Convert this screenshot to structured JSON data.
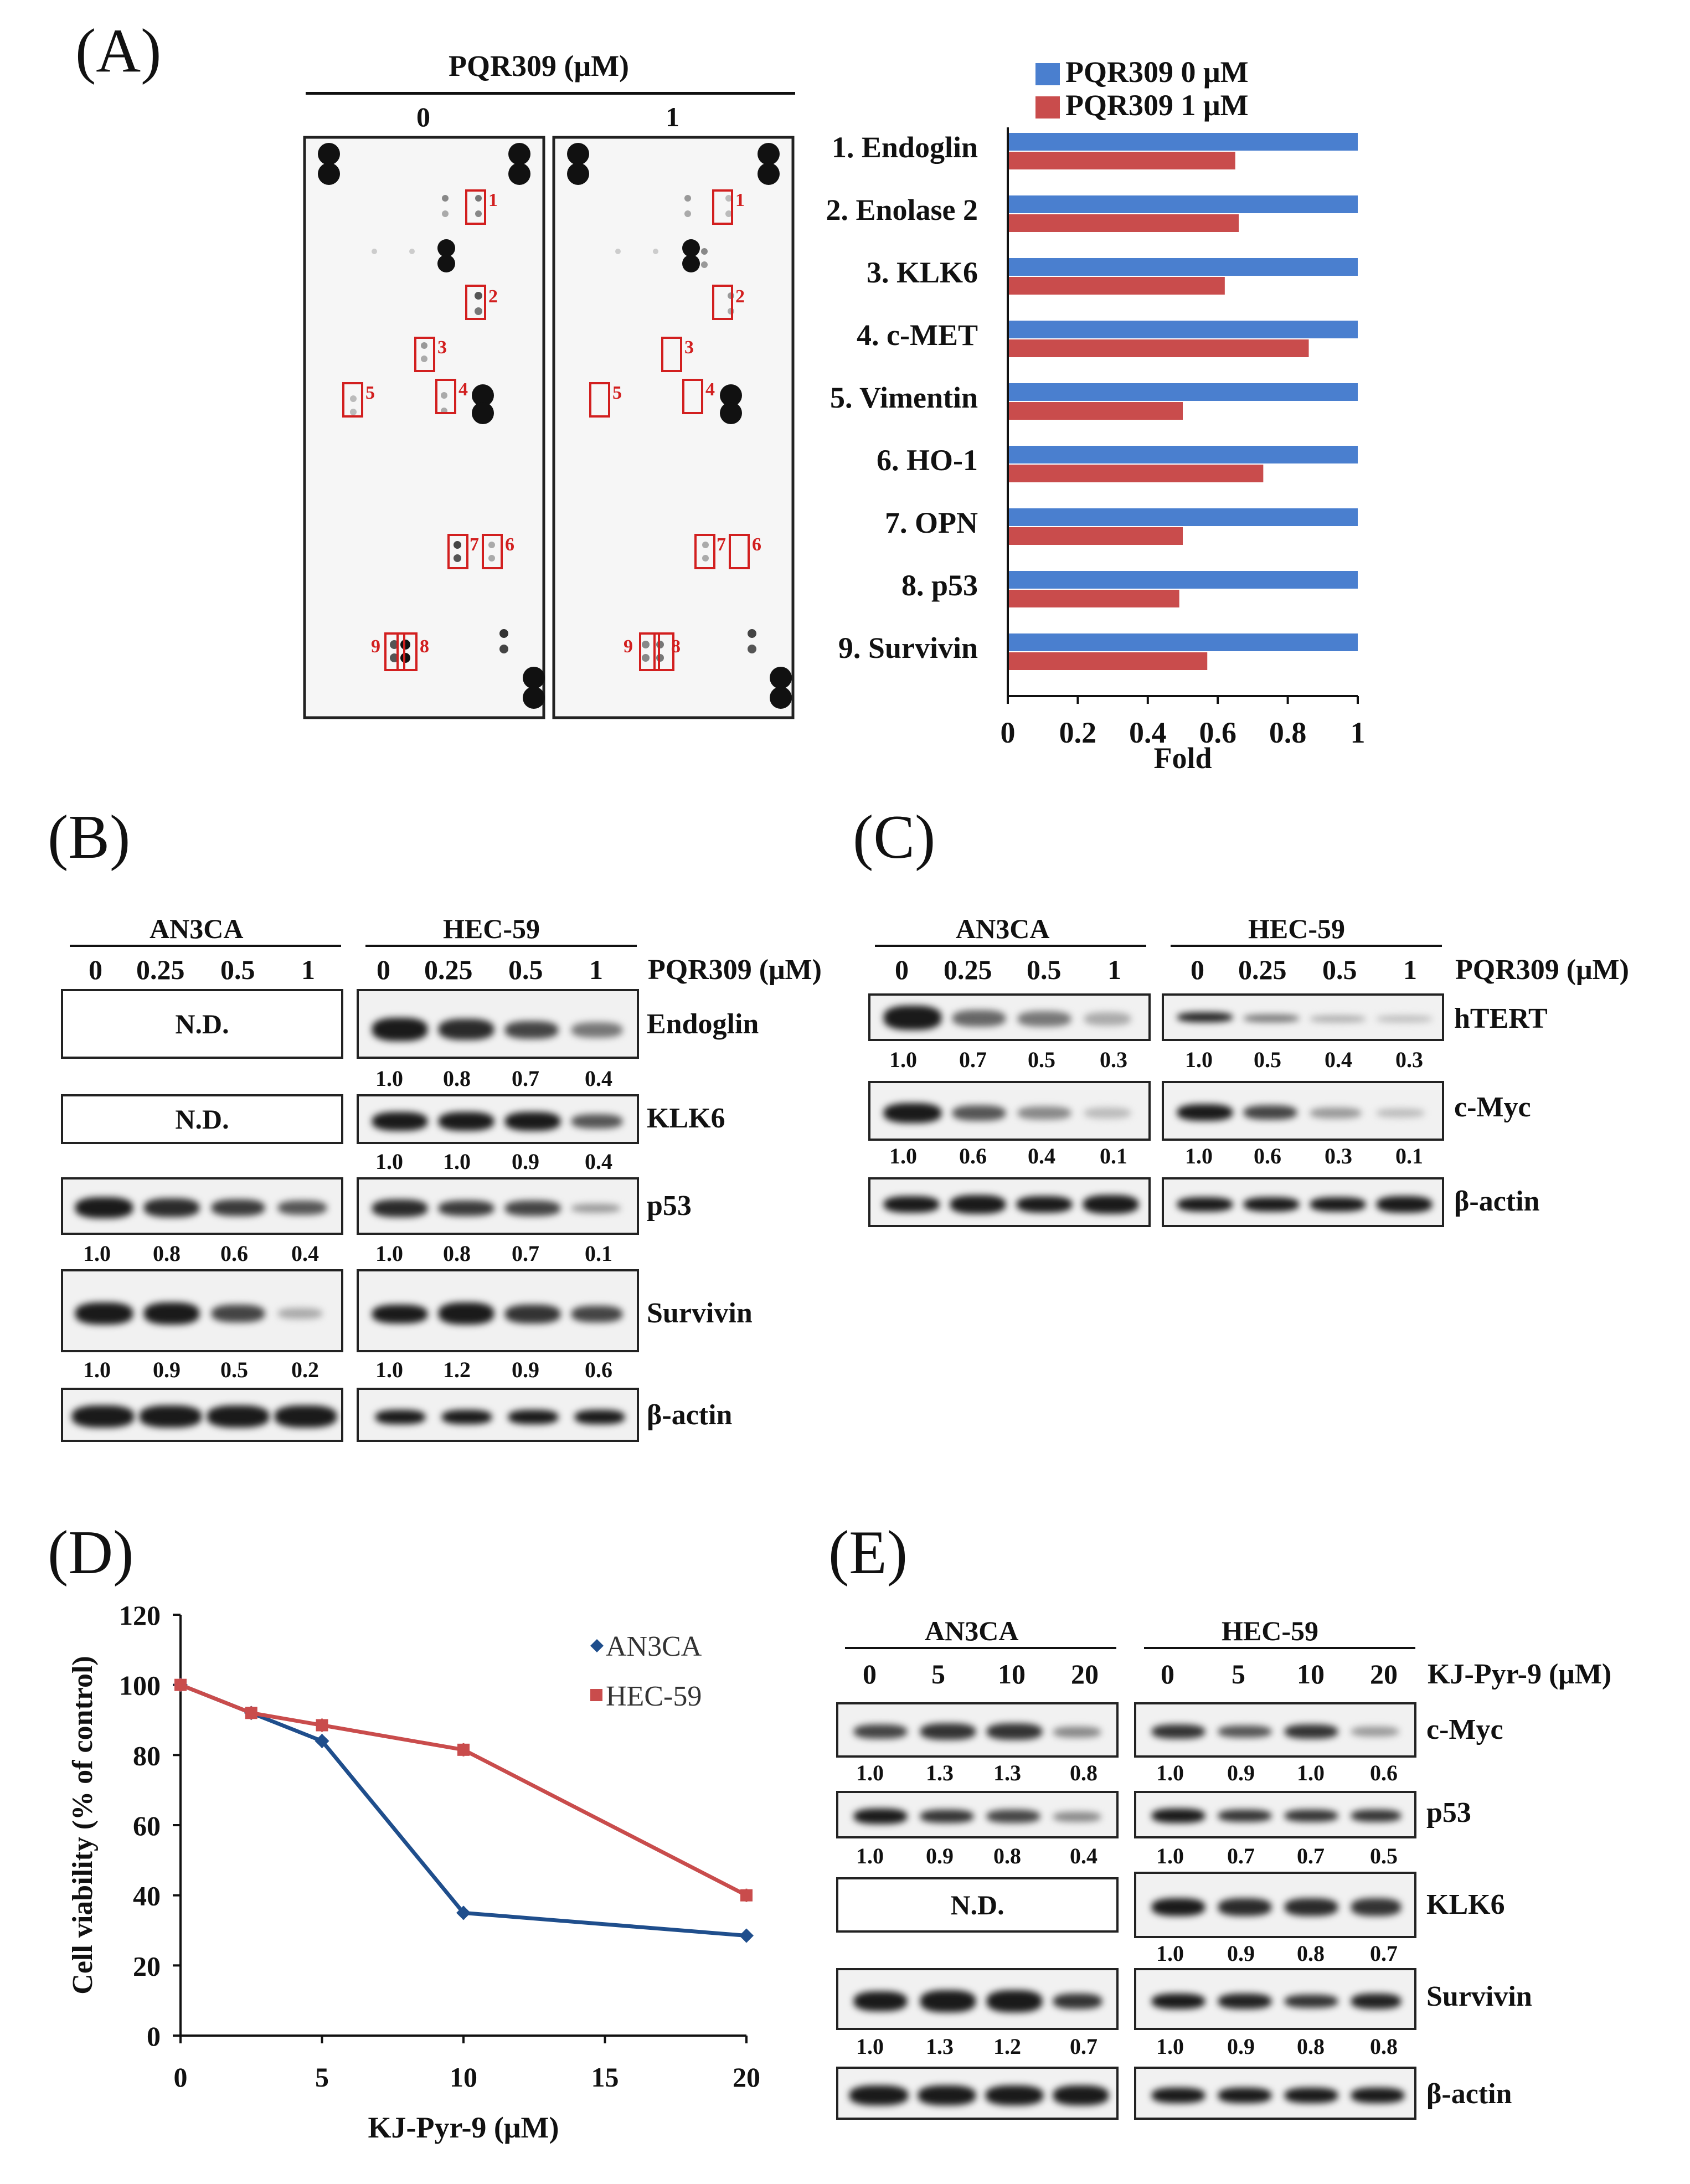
{
  "panels": {
    "A": "(A)",
    "B": "(B)",
    "C": "(C)",
    "D": "(D)",
    "E": "(E)"
  },
  "panelA": {
    "header": "PQR309 (μM)",
    "lanes": [
      "0",
      "1"
    ],
    "box_numbers": [
      "1",
      "2",
      "3",
      "4",
      "5",
      "6",
      "7",
      "8",
      "9"
    ]
  },
  "chart_data": [
    {
      "type": "bar",
      "orientation": "horizontal",
      "categories": [
        "1. Endoglin",
        "2. Enolase 2",
        "3. KLK6",
        "4. c-MET",
        "5. Vimentin",
        "6. HO-1",
        "7. OPN",
        "8. p53",
        "9. Survivin"
      ],
      "series": [
        {
          "name": "PQR309 0 μM",
          "color": "#4a7fcf",
          "values": [
            1,
            1,
            1,
            1,
            1,
            1,
            1,
            1,
            1
          ]
        },
        {
          "name": "PQR309 1 μM",
          "color": "#c94c4c",
          "values": [
            0.65,
            0.66,
            0.62,
            0.86,
            0.5,
            0.73,
            0.5,
            0.49,
            0.57
          ]
        }
      ],
      "xlabel": "Fold",
      "xlim": [
        0,
        1
      ],
      "xticks": [
        "0",
        "0.2",
        "0.4",
        "0.6",
        "0.8",
        "1"
      ],
      "legend": "top"
    },
    {
      "type": "line",
      "x": [
        0,
        2.5,
        5,
        10,
        20
      ],
      "series": [
        {
          "name": "AN3CA",
          "color": "#1f4e8c",
          "marker": "diamond",
          "values": [
            100,
            92,
            84,
            35,
            28.5
          ]
        },
        {
          "name": "HEC-59",
          "color": "#c94c4c",
          "marker": "square",
          "values": [
            100,
            92,
            88.5,
            81.5,
            40
          ]
        }
      ],
      "xlabel": "KJ-Pyr-9 (μM)",
      "ylabel": "Cell viability (% of control)",
      "xlim": [
        0,
        20
      ],
      "ylim": [
        0,
        120
      ],
      "xticks": [
        "0",
        "5",
        "10",
        "15",
        "20"
      ],
      "yticks": [
        "0",
        "20",
        "40",
        "60",
        "80",
        "100",
        "120"
      ],
      "legend": "top-right"
    }
  ],
  "panelB": {
    "cells": [
      "AN3CA",
      "HEC-59"
    ],
    "conc": [
      "0",
      "0.25",
      "0.5",
      "1"
    ],
    "treatment": "PQR309 (μM)",
    "nd": "N.D.",
    "rows": [
      {
        "label": "Endoglin",
        "left": null,
        "right": [
          "1.0",
          "0.8",
          "0.7",
          "0.4"
        ]
      },
      {
        "label": "KLK6",
        "left": null,
        "right": [
          "1.0",
          "1.0",
          "0.9",
          "0.4"
        ]
      },
      {
        "label": "p53",
        "left": [
          "1.0",
          "0.8",
          "0.6",
          "0.4"
        ],
        "right": [
          "1.0",
          "0.8",
          "0.7",
          "0.1"
        ]
      },
      {
        "label": "Survivin",
        "left": [
          "1.0",
          "0.9",
          "0.5",
          "0.2"
        ],
        "right": [
          "1.0",
          "1.2",
          "0.9",
          "0.6"
        ]
      },
      {
        "label": "β-actin"
      }
    ]
  },
  "panelC": {
    "cells": [
      "AN3CA",
      "HEC-59"
    ],
    "conc": [
      "0",
      "0.25",
      "0.5",
      "1"
    ],
    "treatment": "PQR309 (μM)",
    "rows": [
      {
        "label": "hTERT",
        "left": [
          "1.0",
          "0.7",
          "0.5",
          "0.3"
        ],
        "right": [
          "1.0",
          "0.5",
          "0.4",
          "0.3"
        ]
      },
      {
        "label": "c-Myc",
        "left": [
          "1.0",
          "0.6",
          "0.4",
          "0.1"
        ],
        "right": [
          "1.0",
          "0.6",
          "0.3",
          "0.1"
        ]
      },
      {
        "label": "β-actin"
      }
    ]
  },
  "panelE": {
    "cells": [
      "AN3CA",
      "HEC-59"
    ],
    "conc": [
      "0",
      "5",
      "10",
      "20"
    ],
    "treatment": "KJ-Pyr-9 (μM)",
    "nd": "N.D.",
    "rows": [
      {
        "label": "c-Myc",
        "left": [
          "1.0",
          "1.3",
          "1.3",
          "0.8"
        ],
        "right": [
          "1.0",
          "0.9",
          "1.0",
          "0.6"
        ]
      },
      {
        "label": "p53",
        "left": [
          "1.0",
          "0.9",
          "0.8",
          "0.4"
        ],
        "right": [
          "1.0",
          "0.7",
          "0.7",
          "0.5"
        ]
      },
      {
        "label": "KLK6",
        "left": null,
        "right": [
          "1.0",
          "0.9",
          "0.8",
          "0.7"
        ]
      },
      {
        "label": "Survivin",
        "left": [
          "1.0",
          "1.3",
          "1.2",
          "0.7"
        ],
        "right": [
          "1.0",
          "0.9",
          "0.8",
          "0.8"
        ]
      },
      {
        "label": "β-actin"
      }
    ]
  }
}
